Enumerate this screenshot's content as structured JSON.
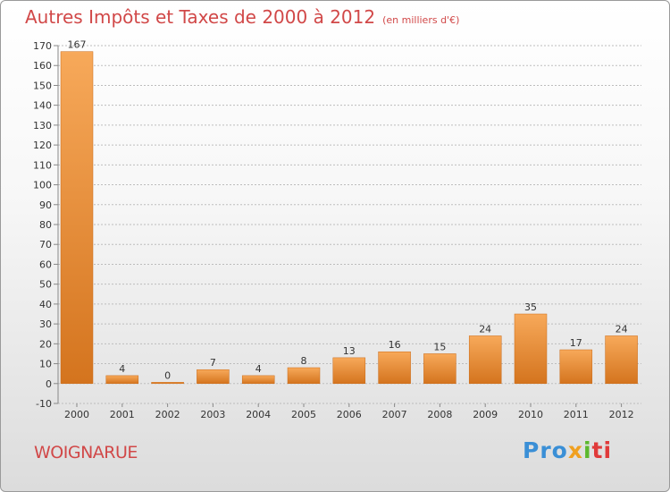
{
  "title": {
    "main": "Autres Impôts et Taxes de 2000 à 2012",
    "unit": "(en milliers d'€)"
  },
  "commune": "WOIGNARUE",
  "logo": {
    "parts": [
      "Pro",
      "x",
      "i",
      "ti"
    ],
    "colors": [
      "#3a8fd6",
      "#f0a020",
      "#5cb82e",
      "#e03a3a"
    ]
  },
  "colors": {
    "bar_light": "#f7a95a",
    "bar_dark": "#d4741e",
    "title": "#d14848",
    "grid": "#bdbdbd",
    "axis_text": "#333333"
  },
  "chart_data": {
    "type": "bar",
    "categories": [
      "2000",
      "2001",
      "2002",
      "2003",
      "2004",
      "2005",
      "2006",
      "2007",
      "2008",
      "2009",
      "2010",
      "2011",
      "2012"
    ],
    "values": [
      167,
      4,
      0,
      7,
      4,
      8,
      13,
      16,
      15,
      24,
      35,
      17,
      24
    ],
    "data_labels": [
      "167",
      "4",
      "0",
      "7",
      "4",
      "8",
      "13",
      "16",
      "15",
      "24",
      "35",
      "17",
      "24"
    ],
    "ylim": [
      -10,
      170
    ],
    "yticks": [
      -10,
      0,
      10,
      20,
      30,
      40,
      50,
      60,
      70,
      80,
      90,
      100,
      110,
      120,
      130,
      140,
      150,
      160,
      170
    ],
    "grid": true,
    "legend": false
  }
}
